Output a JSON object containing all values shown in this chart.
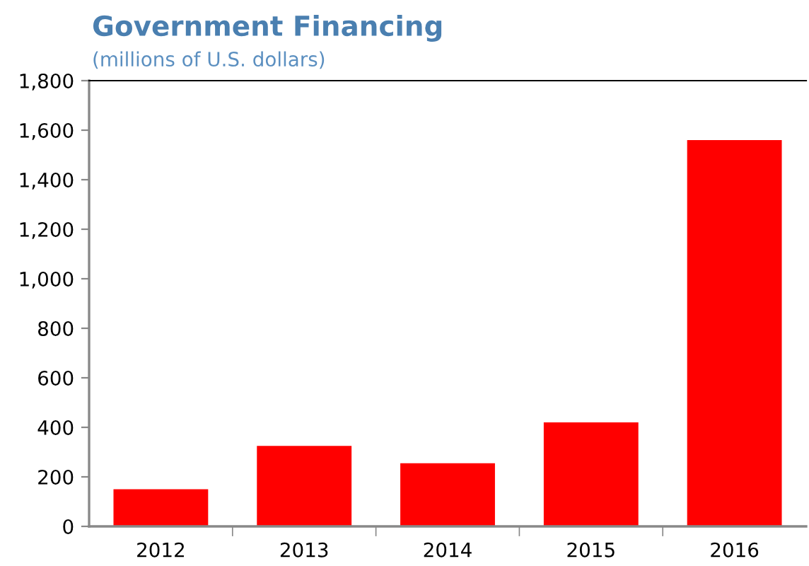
{
  "chart_data": {
    "type": "bar",
    "title": "Government Financing",
    "subtitle": "(millions of U.S. dollars)",
    "categories": [
      "2012",
      "2013",
      "2014",
      "2015",
      "2016"
    ],
    "values": [
      150,
      325,
      255,
      420,
      1560
    ],
    "color": "#ff0000",
    "ylim": [
      0,
      1800
    ],
    "yticks": [
      {
        "value": 0,
        "label": "0"
      },
      {
        "value": 200,
        "label": "200"
      },
      {
        "value": 400,
        "label": "400"
      },
      {
        "value": 600,
        "label": "600"
      },
      {
        "value": 800,
        "label": "800"
      },
      {
        "value": 1000,
        "label": "1,000"
      },
      {
        "value": 1200,
        "label": "1,200"
      },
      {
        "value": 1400,
        "label": "1,400"
      },
      {
        "value": 1600,
        "label": "1,600"
      },
      {
        "value": 1800,
        "label": "1,800"
      }
    ],
    "grid": false,
    "legend": false
  }
}
